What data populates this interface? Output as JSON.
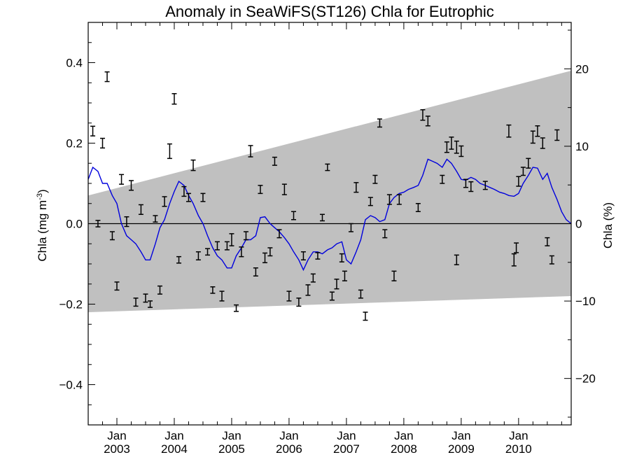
{
  "chart_data": {
    "type": "line",
    "title": "Anomaly in SeaWiFS(ST126) Chla for Eutrophic",
    "ylabel_left": "Chla (mg m",
    "ylabel_left_sup": "-3",
    "ylabel_left_end": ")",
    "ylabel_right": "Chla (%)",
    "xlim": [
      2002.5,
      2010.9167
    ],
    "ylim": [
      -0.5,
      0.5
    ],
    "ylim_right": [
      -26,
      26
    ],
    "yticks_left": [
      {
        "value": 0.4,
        "label": "0.4"
      },
      {
        "value": 0.2,
        "label": "0.2"
      },
      {
        "value": 0.0,
        "label": "0.0"
      },
      {
        "value": -0.2,
        "label": "−0.2"
      },
      {
        "value": -0.4,
        "label": "−0.4"
      }
    ],
    "yticks_right": [
      {
        "value": 20,
        "label": "20"
      },
      {
        "value": 10,
        "label": "10"
      },
      {
        "value": 0,
        "label": "0"
      },
      {
        "value": -10,
        "label": "−10"
      },
      {
        "value": -20,
        "label": "−20"
      }
    ],
    "xticks": [
      {
        "value": 2003.0,
        "month": "Jan",
        "year": "2003"
      },
      {
        "value": 2004.0,
        "month": "Jan",
        "year": "2004"
      },
      {
        "value": 2005.0,
        "month": "Jan",
        "year": "2005"
      },
      {
        "value": 2006.0,
        "month": "Jan",
        "year": "2006"
      },
      {
        "value": 2007.0,
        "month": "Jan",
        "year": "2007"
      },
      {
        "value": 2008.0,
        "month": "Jan",
        "year": "2008"
      },
      {
        "value": 2009.0,
        "month": "Jan",
        "year": "2009"
      },
      {
        "value": 2010.0,
        "month": "Jan",
        "year": "2010"
      }
    ],
    "trend_band": {
      "color": "#c0c0c0",
      "x": [
        2002.5,
        2010.9167
      ],
      "upper": [
        0.07,
        0.38
      ],
      "lower": [
        -0.22,
        -0.18
      ]
    },
    "zero_line": 0.0,
    "series": [
      {
        "kind": "line",
        "color": "#0000dd",
        "points": [
          [
            2002.5,
            0.11
          ],
          [
            2002.58,
            0.14
          ],
          [
            2002.67,
            0.13
          ],
          [
            2002.75,
            0.1
          ],
          [
            2002.83,
            0.1
          ],
          [
            2002.92,
            0.07
          ],
          [
            2003.0,
            0.05
          ],
          [
            2003.08,
            0.0
          ],
          [
            2003.17,
            -0.03
          ],
          [
            2003.25,
            -0.04
          ],
          [
            2003.33,
            -0.05
          ],
          [
            2003.42,
            -0.07
          ],
          [
            2003.5,
            -0.09
          ],
          [
            2003.58,
            -0.09
          ],
          [
            2003.67,
            -0.05
          ],
          [
            2003.75,
            -0.01
          ],
          [
            2003.83,
            0.01
          ],
          [
            2003.92,
            0.05
          ],
          [
            2004.0,
            0.08
          ],
          [
            2004.08,
            0.105
          ],
          [
            2004.17,
            0.095
          ],
          [
            2004.25,
            0.07
          ],
          [
            2004.33,
            0.05
          ],
          [
            2004.42,
            0.02
          ],
          [
            2004.5,
            0.0
          ],
          [
            2004.58,
            -0.03
          ],
          [
            2004.67,
            -0.06
          ],
          [
            2004.75,
            -0.08
          ],
          [
            2004.83,
            -0.09
          ],
          [
            2004.92,
            -0.11
          ],
          [
            2005.0,
            -0.11
          ],
          [
            2005.08,
            -0.08
          ],
          [
            2005.17,
            -0.06
          ],
          [
            2005.25,
            -0.04
          ],
          [
            2005.33,
            -0.04
          ],
          [
            2005.42,
            -0.03
          ],
          [
            2005.5,
            0.015
          ],
          [
            2005.58,
            0.017
          ],
          [
            2005.67,
            0.0
          ],
          [
            2005.75,
            -0.01
          ],
          [
            2005.83,
            -0.02
          ],
          [
            2005.92,
            -0.035
          ],
          [
            2006.0,
            -0.05
          ],
          [
            2006.08,
            -0.07
          ],
          [
            2006.17,
            -0.09
          ],
          [
            2006.25,
            -0.115
          ],
          [
            2006.33,
            -0.09
          ],
          [
            2006.42,
            -0.07
          ],
          [
            2006.5,
            -0.07
          ],
          [
            2006.58,
            -0.075
          ],
          [
            2006.67,
            -0.065
          ],
          [
            2006.75,
            -0.06
          ],
          [
            2006.83,
            -0.05
          ],
          [
            2006.92,
            -0.045
          ],
          [
            2007.0,
            -0.09
          ],
          [
            2007.08,
            -0.1
          ],
          [
            2007.17,
            -0.07
          ],
          [
            2007.25,
            -0.04
          ],
          [
            2007.33,
            0.01
          ],
          [
            2007.42,
            0.02
          ],
          [
            2007.5,
            0.015
          ],
          [
            2007.58,
            0.005
          ],
          [
            2007.67,
            0.01
          ],
          [
            2007.75,
            0.05
          ],
          [
            2007.83,
            0.065
          ],
          [
            2007.92,
            0.075
          ],
          [
            2008.0,
            0.078
          ],
          [
            2008.08,
            0.085
          ],
          [
            2008.17,
            0.09
          ],
          [
            2008.25,
            0.095
          ],
          [
            2008.33,
            0.12
          ],
          [
            2008.42,
            0.16
          ],
          [
            2008.5,
            0.155
          ],
          [
            2008.58,
            0.15
          ],
          [
            2008.67,
            0.14
          ],
          [
            2008.75,
            0.16
          ],
          [
            2008.83,
            0.15
          ],
          [
            2008.92,
            0.13
          ],
          [
            2009.0,
            0.11
          ],
          [
            2009.08,
            0.108
          ],
          [
            2009.17,
            0.115
          ],
          [
            2009.25,
            0.11
          ],
          [
            2009.33,
            0.1
          ],
          [
            2009.42,
            0.095
          ],
          [
            2009.5,
            0.09
          ],
          [
            2009.58,
            0.085
          ],
          [
            2009.67,
            0.078
          ],
          [
            2009.75,
            0.075
          ],
          [
            2009.83,
            0.07
          ],
          [
            2009.92,
            0.068
          ],
          [
            2010.0,
            0.075
          ],
          [
            2010.08,
            0.1
          ],
          [
            2010.17,
            0.12
          ],
          [
            2010.25,
            0.14
          ],
          [
            2010.33,
            0.138
          ],
          [
            2010.42,
            0.11
          ],
          [
            2010.5,
            0.125
          ],
          [
            2010.58,
            0.09
          ],
          [
            2010.67,
            0.06
          ],
          [
            2010.75,
            0.03
          ],
          [
            2010.83,
            0.01
          ],
          [
            2010.9167,
            0.0
          ]
        ]
      },
      {
        "kind": "errorbar",
        "color": "#000000",
        "points": [
          [
            2002.58,
            0.23,
            0.012
          ],
          [
            2002.67,
            0.0,
            0.008
          ],
          [
            2002.75,
            0.2,
            0.012
          ],
          [
            2002.83,
            0.365,
            0.012
          ],
          [
            2002.92,
            -0.03,
            0.01
          ],
          [
            2003.0,
            -0.155,
            0.01
          ],
          [
            2003.08,
            0.11,
            0.012
          ],
          [
            2003.17,
            0.005,
            0.012
          ],
          [
            2003.25,
            0.095,
            0.012
          ],
          [
            2003.33,
            -0.195,
            0.01
          ],
          [
            2003.42,
            0.035,
            0.012
          ],
          [
            2003.5,
            -0.185,
            0.01
          ],
          [
            2003.58,
            -0.2,
            0.008
          ],
          [
            2003.67,
            0.012,
            0.008
          ],
          [
            2003.75,
            -0.165,
            0.01
          ],
          [
            2003.83,
            0.055,
            0.012
          ],
          [
            2003.92,
            0.18,
            0.018
          ],
          [
            2004.0,
            0.31,
            0.013
          ],
          [
            2004.08,
            -0.09,
            0.008
          ],
          [
            2004.17,
            0.08,
            0.012
          ],
          [
            2004.25,
            0.065,
            0.01
          ],
          [
            2004.33,
            0.145,
            0.013
          ],
          [
            2004.42,
            -0.08,
            0.01
          ],
          [
            2004.5,
            0.065,
            0.01
          ],
          [
            2004.58,
            -0.07,
            0.008
          ],
          [
            2004.67,
            -0.165,
            0.008
          ],
          [
            2004.75,
            -0.055,
            0.01
          ],
          [
            2004.83,
            -0.18,
            0.012
          ],
          [
            2004.92,
            -0.055,
            0.01
          ],
          [
            2005.0,
            -0.04,
            0.015
          ],
          [
            2005.08,
            -0.21,
            0.008
          ],
          [
            2005.17,
            -0.07,
            0.012
          ],
          [
            2005.25,
            -0.03,
            0.01
          ],
          [
            2005.33,
            0.18,
            0.014
          ],
          [
            2005.42,
            -0.12,
            0.01
          ],
          [
            2005.5,
            0.085,
            0.01
          ],
          [
            2005.58,
            -0.085,
            0.012
          ],
          [
            2005.67,
            -0.07,
            0.01
          ],
          [
            2005.75,
            0.155,
            0.01
          ],
          [
            2005.83,
            -0.025,
            0.01
          ],
          [
            2005.92,
            0.085,
            0.013
          ],
          [
            2006.0,
            -0.18,
            0.012
          ],
          [
            2006.08,
            0.02,
            0.01
          ],
          [
            2006.17,
            -0.195,
            0.01
          ],
          [
            2006.25,
            -0.08,
            0.01
          ],
          [
            2006.33,
            -0.165,
            0.013
          ],
          [
            2006.42,
            -0.135,
            0.01
          ],
          [
            2006.5,
            -0.08,
            0.008
          ],
          [
            2006.58,
            0.015,
            0.008
          ],
          [
            2006.67,
            0.14,
            0.008
          ],
          [
            2006.75,
            -0.18,
            0.01
          ],
          [
            2006.83,
            -0.15,
            0.012
          ],
          [
            2006.92,
            -0.085,
            0.01
          ],
          [
            2006.97,
            -0.13,
            0.012
          ],
          [
            2007.08,
            -0.01,
            0.01
          ],
          [
            2007.17,
            0.09,
            0.012
          ],
          [
            2007.25,
            -0.175,
            0.01
          ],
          [
            2007.33,
            -0.23,
            0.01
          ],
          [
            2007.42,
            0.055,
            0.01
          ],
          [
            2007.5,
            0.11,
            0.01
          ],
          [
            2007.58,
            0.25,
            0.01
          ],
          [
            2007.67,
            -0.025,
            0.01
          ],
          [
            2007.75,
            0.06,
            0.012
          ],
          [
            2007.83,
            -0.13,
            0.012
          ],
          [
            2007.92,
            0.06,
            0.012
          ],
          [
            2008.25,
            0.04,
            0.01
          ],
          [
            2008.33,
            0.27,
            0.013
          ],
          [
            2008.42,
            0.255,
            0.012
          ],
          [
            2008.67,
            0.11,
            0.01
          ],
          [
            2008.75,
            0.19,
            0.013
          ],
          [
            2008.83,
            0.2,
            0.015
          ],
          [
            2008.92,
            0.19,
            0.015
          ],
          [
            2008.92,
            -0.09,
            0.012
          ],
          [
            2009.0,
            0.18,
            0.013
          ],
          [
            2009.08,
            0.1,
            0.01
          ],
          [
            2009.17,
            0.092,
            0.012
          ],
          [
            2009.42,
            0.095,
            0.01
          ],
          [
            2009.83,
            0.23,
            0.015
          ],
          [
            2009.92,
            -0.09,
            0.015
          ],
          [
            2009.96,
            -0.06,
            0.012
          ],
          [
            2010.0,
            0.105,
            0.012
          ],
          [
            2010.08,
            0.13,
            0.01
          ],
          [
            2010.17,
            0.15,
            0.012
          ],
          [
            2010.25,
            0.215,
            0.015
          ],
          [
            2010.33,
            0.23,
            0.013
          ],
          [
            2010.42,
            0.2,
            0.013
          ],
          [
            2010.5,
            -0.045,
            0.01
          ],
          [
            2010.58,
            -0.09,
            0.01
          ],
          [
            2010.67,
            0.22,
            0.013
          ]
        ]
      }
    ]
  }
}
